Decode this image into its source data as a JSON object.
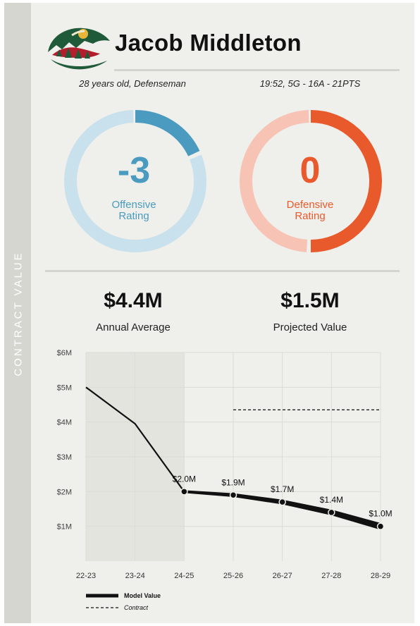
{
  "sidebar": {
    "label": "CONTRACT VALUE"
  },
  "player": {
    "name": "Jacob Middleton",
    "bio": "28 years old, Defenseman",
    "stats": "19:52, 5G - 16A - 21PTS"
  },
  "ratings": {
    "offensive": {
      "value": "-3",
      "label_line1": "Offensive",
      "label_line2": "Rating",
      "fraction": 0.18,
      "color": "#4a9bbf",
      "track_color": "#c9e1ec"
    },
    "defensive": {
      "value": "0",
      "label_line1": "Defensive",
      "label_line2": "Rating",
      "fraction": 0.5,
      "color": "#e85a2c",
      "track_color": "#f6c3b5"
    }
  },
  "contract": {
    "annual_average": {
      "value": "$4.4M",
      "label": "Annual Average"
    },
    "projected_value": {
      "value": "$1.5M",
      "label": "Projected Value"
    }
  },
  "chart_data": {
    "type": "line",
    "x": [
      "22-23",
      "23-24",
      "24-25",
      "25-26",
      "26-27",
      "27-28",
      "28-29"
    ],
    "ylim": [
      0,
      6
    ],
    "yticks": [
      "$6M",
      "$5M",
      "$4M",
      "$3M",
      "$2M",
      "$1M"
    ],
    "ytick_values": [
      6,
      5,
      4,
      3,
      2,
      1
    ],
    "grid": true,
    "shaded_region": [
      "22-23",
      "24-25"
    ],
    "series": [
      {
        "name": "Model Value",
        "values": [
          5.0,
          3.95,
          2.0,
          1.9,
          1.7,
          1.4,
          1.0
        ],
        "labels": [
          null,
          null,
          "$2.0M",
          "$1.9M",
          "$1.7M",
          "$1.4M",
          "$1.0M"
        ],
        "projected_from_index": 2
      },
      {
        "name": "Contract",
        "style": "dashed",
        "values": [
          null,
          null,
          null,
          4.35,
          4.35,
          4.35,
          4.35
        ]
      }
    ],
    "legend_position": "bottom-left"
  }
}
